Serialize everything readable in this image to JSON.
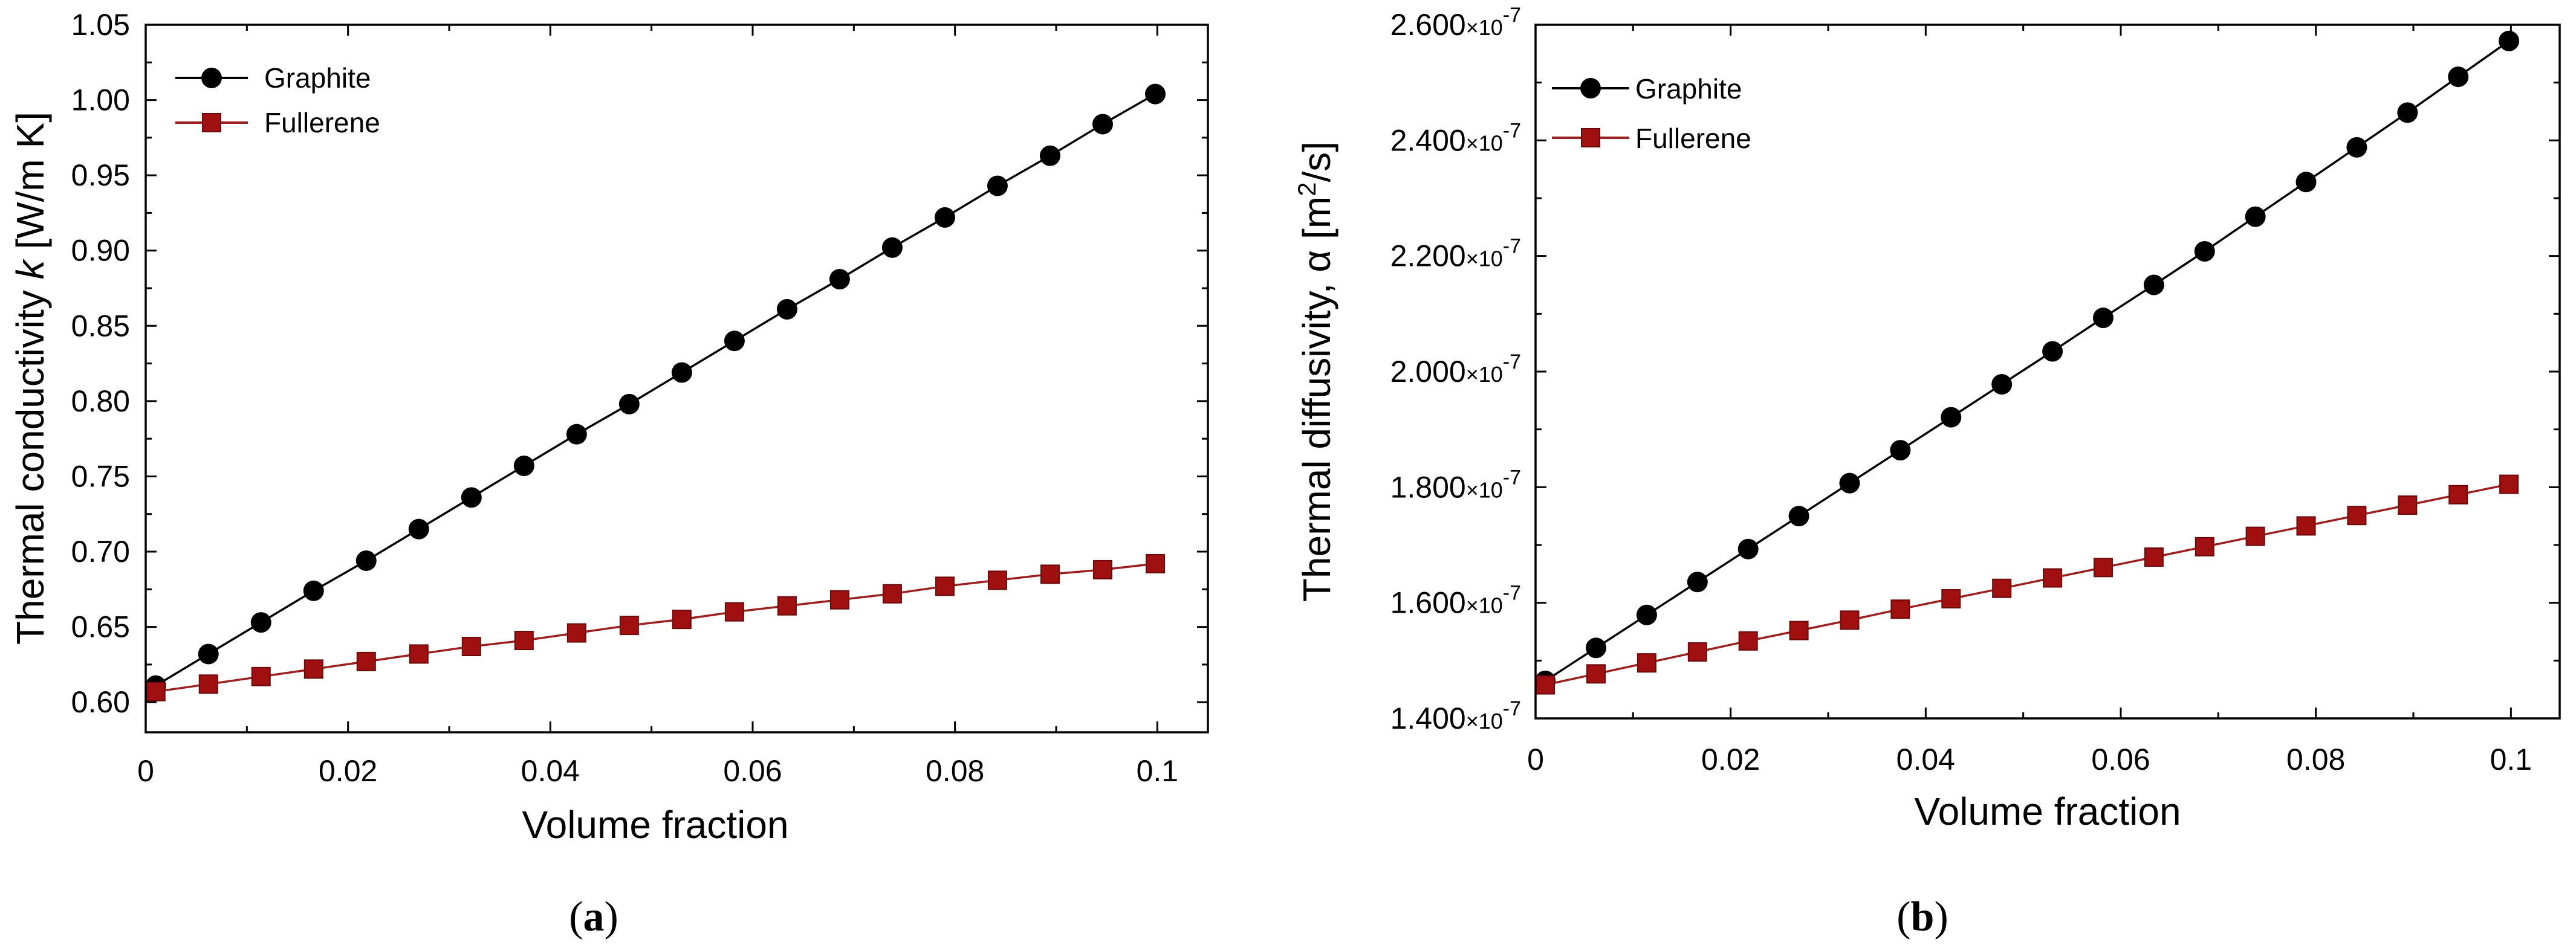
{
  "colors": {
    "graphite_line": "#000000",
    "graphite_marker": "#000000",
    "fullerene_line": "#9b2020",
    "fullerene_marker": "#a01010"
  },
  "chart_data": [
    {
      "type": "line",
      "panel_label": "(a)",
      "panel_letter": "a",
      "xlabel": "Volume fraction",
      "ylabel_prefix": "Thermal conductivity ",
      "ylabel_symbol": "k",
      "ylabel_suffix": " [W/m K]",
      "xlim": [
        0,
        0.105
      ],
      "ylim": [
        0.58,
        1.05
      ],
      "xticks": [
        0,
        0.02,
        0.04,
        0.06,
        0.08,
        0.1
      ],
      "xtick_labels": [
        "0",
        "0.02",
        "0.04",
        "0.06",
        "0.08",
        "0.1"
      ],
      "yticks": [
        0.6,
        0.65,
        0.7,
        0.75,
        0.8,
        0.85,
        0.9,
        0.95,
        1.0,
        1.05
      ],
      "ytick_labels": [
        "0.60",
        "0.65",
        "0.70",
        "0.75",
        "0.80",
        "0.85",
        "0.90",
        "0.95",
        "1.00",
        "1.05"
      ],
      "legend_position": "top-left",
      "x": [
        0.001,
        0.0062,
        0.0114,
        0.0166,
        0.0218,
        0.027,
        0.0322,
        0.0374,
        0.0426,
        0.0478,
        0.053,
        0.0582,
        0.0634,
        0.0686,
        0.0738,
        0.079,
        0.0842,
        0.0894,
        0.0946,
        0.0998
      ],
      "series": [
        {
          "name": "Graphite",
          "marker": "circle",
          "values": [
            0.611,
            0.632,
            0.653,
            0.674,
            0.694,
            0.715,
            0.736,
            0.757,
            0.778,
            0.798,
            0.819,
            0.84,
            0.861,
            0.881,
            0.902,
            0.922,
            0.943,
            0.963,
            0.984,
            1.004
          ]
        },
        {
          "name": "Fullerene",
          "marker": "square",
          "values": [
            0.607,
            0.612,
            0.617,
            0.622,
            0.627,
            0.632,
            0.637,
            0.641,
            0.646,
            0.651,
            0.655,
            0.66,
            0.664,
            0.668,
            0.672,
            0.677,
            0.681,
            0.685,
            0.688,
            0.692
          ]
        }
      ]
    },
    {
      "type": "line",
      "panel_label": "(b)",
      "panel_letter": "b",
      "xlabel": "Volume fraction",
      "ylabel_prefix": "Thermal diffusivity, ",
      "ylabel_symbol": "α",
      "ylabel_units_open": " [m",
      "ylabel_units_sup": "2",
      "ylabel_units_close": "/s]",
      "xlim": [
        0,
        0.105
      ],
      "ylim": [
        1.4e-07,
        2.6e-07
      ],
      "xticks": [
        0,
        0.02,
        0.04,
        0.06,
        0.08,
        0.1
      ],
      "xtick_labels": [
        "0",
        "0.02",
        "0.04",
        "0.06",
        "0.08",
        "0.1"
      ],
      "yticks": [
        1.4e-07,
        1.6e-07,
        1.8e-07,
        2e-07,
        2.2e-07,
        2.4e-07,
        2.6e-07
      ],
      "ytick_labels": [
        {
          "mantissa": "1.400",
          "times": "×10",
          "exp": "-7"
        },
        {
          "mantissa": "1.600",
          "times": "×10",
          "exp": "-7"
        },
        {
          "mantissa": "1.800",
          "times": "×10",
          "exp": "-7"
        },
        {
          "mantissa": "2.000",
          "times": "×10",
          "exp": "-7"
        },
        {
          "mantissa": "2.200",
          "times": "×10",
          "exp": "-7"
        },
        {
          "mantissa": "2.400",
          "times": "×10",
          "exp": "-7"
        },
        {
          "mantissa": "2.600",
          "times": "×10",
          "exp": "-7"
        }
      ],
      "legend_position": "top-left",
      "x": [
        0.001,
        0.0062,
        0.0114,
        0.0166,
        0.0218,
        0.027,
        0.0322,
        0.0374,
        0.0426,
        0.0478,
        0.053,
        0.0582,
        0.0634,
        0.0686,
        0.0738,
        0.079,
        0.0842,
        0.0894,
        0.0946,
        0.0998
      ],
      "series": [
        {
          "name": "Graphite",
          "marker": "circle",
          "values": [
            1.465e-07,
            1.522e-07,
            1.579e-07,
            1.636e-07,
            1.693e-07,
            1.75e-07,
            1.807e-07,
            1.864e-07,
            1.921e-07,
            1.978e-07,
            2.035e-07,
            2.093e-07,
            2.15e-07,
            2.208e-07,
            2.268e-07,
            2.328e-07,
            2.388e-07,
            2.448e-07,
            2.51e-07,
            2.572e-07
          ]
        },
        {
          "name": "Fullerene",
          "marker": "square",
          "values": [
            1.458e-07,
            1.477e-07,
            1.496e-07,
            1.515e-07,
            1.534e-07,
            1.552e-07,
            1.57e-07,
            1.589e-07,
            1.607e-07,
            1.625e-07,
            1.643e-07,
            1.661e-07,
            1.679e-07,
            1.697e-07,
            1.715e-07,
            1.733e-07,
            1.751e-07,
            1.769e-07,
            1.787e-07,
            1.805e-07
          ]
        }
      ]
    }
  ]
}
